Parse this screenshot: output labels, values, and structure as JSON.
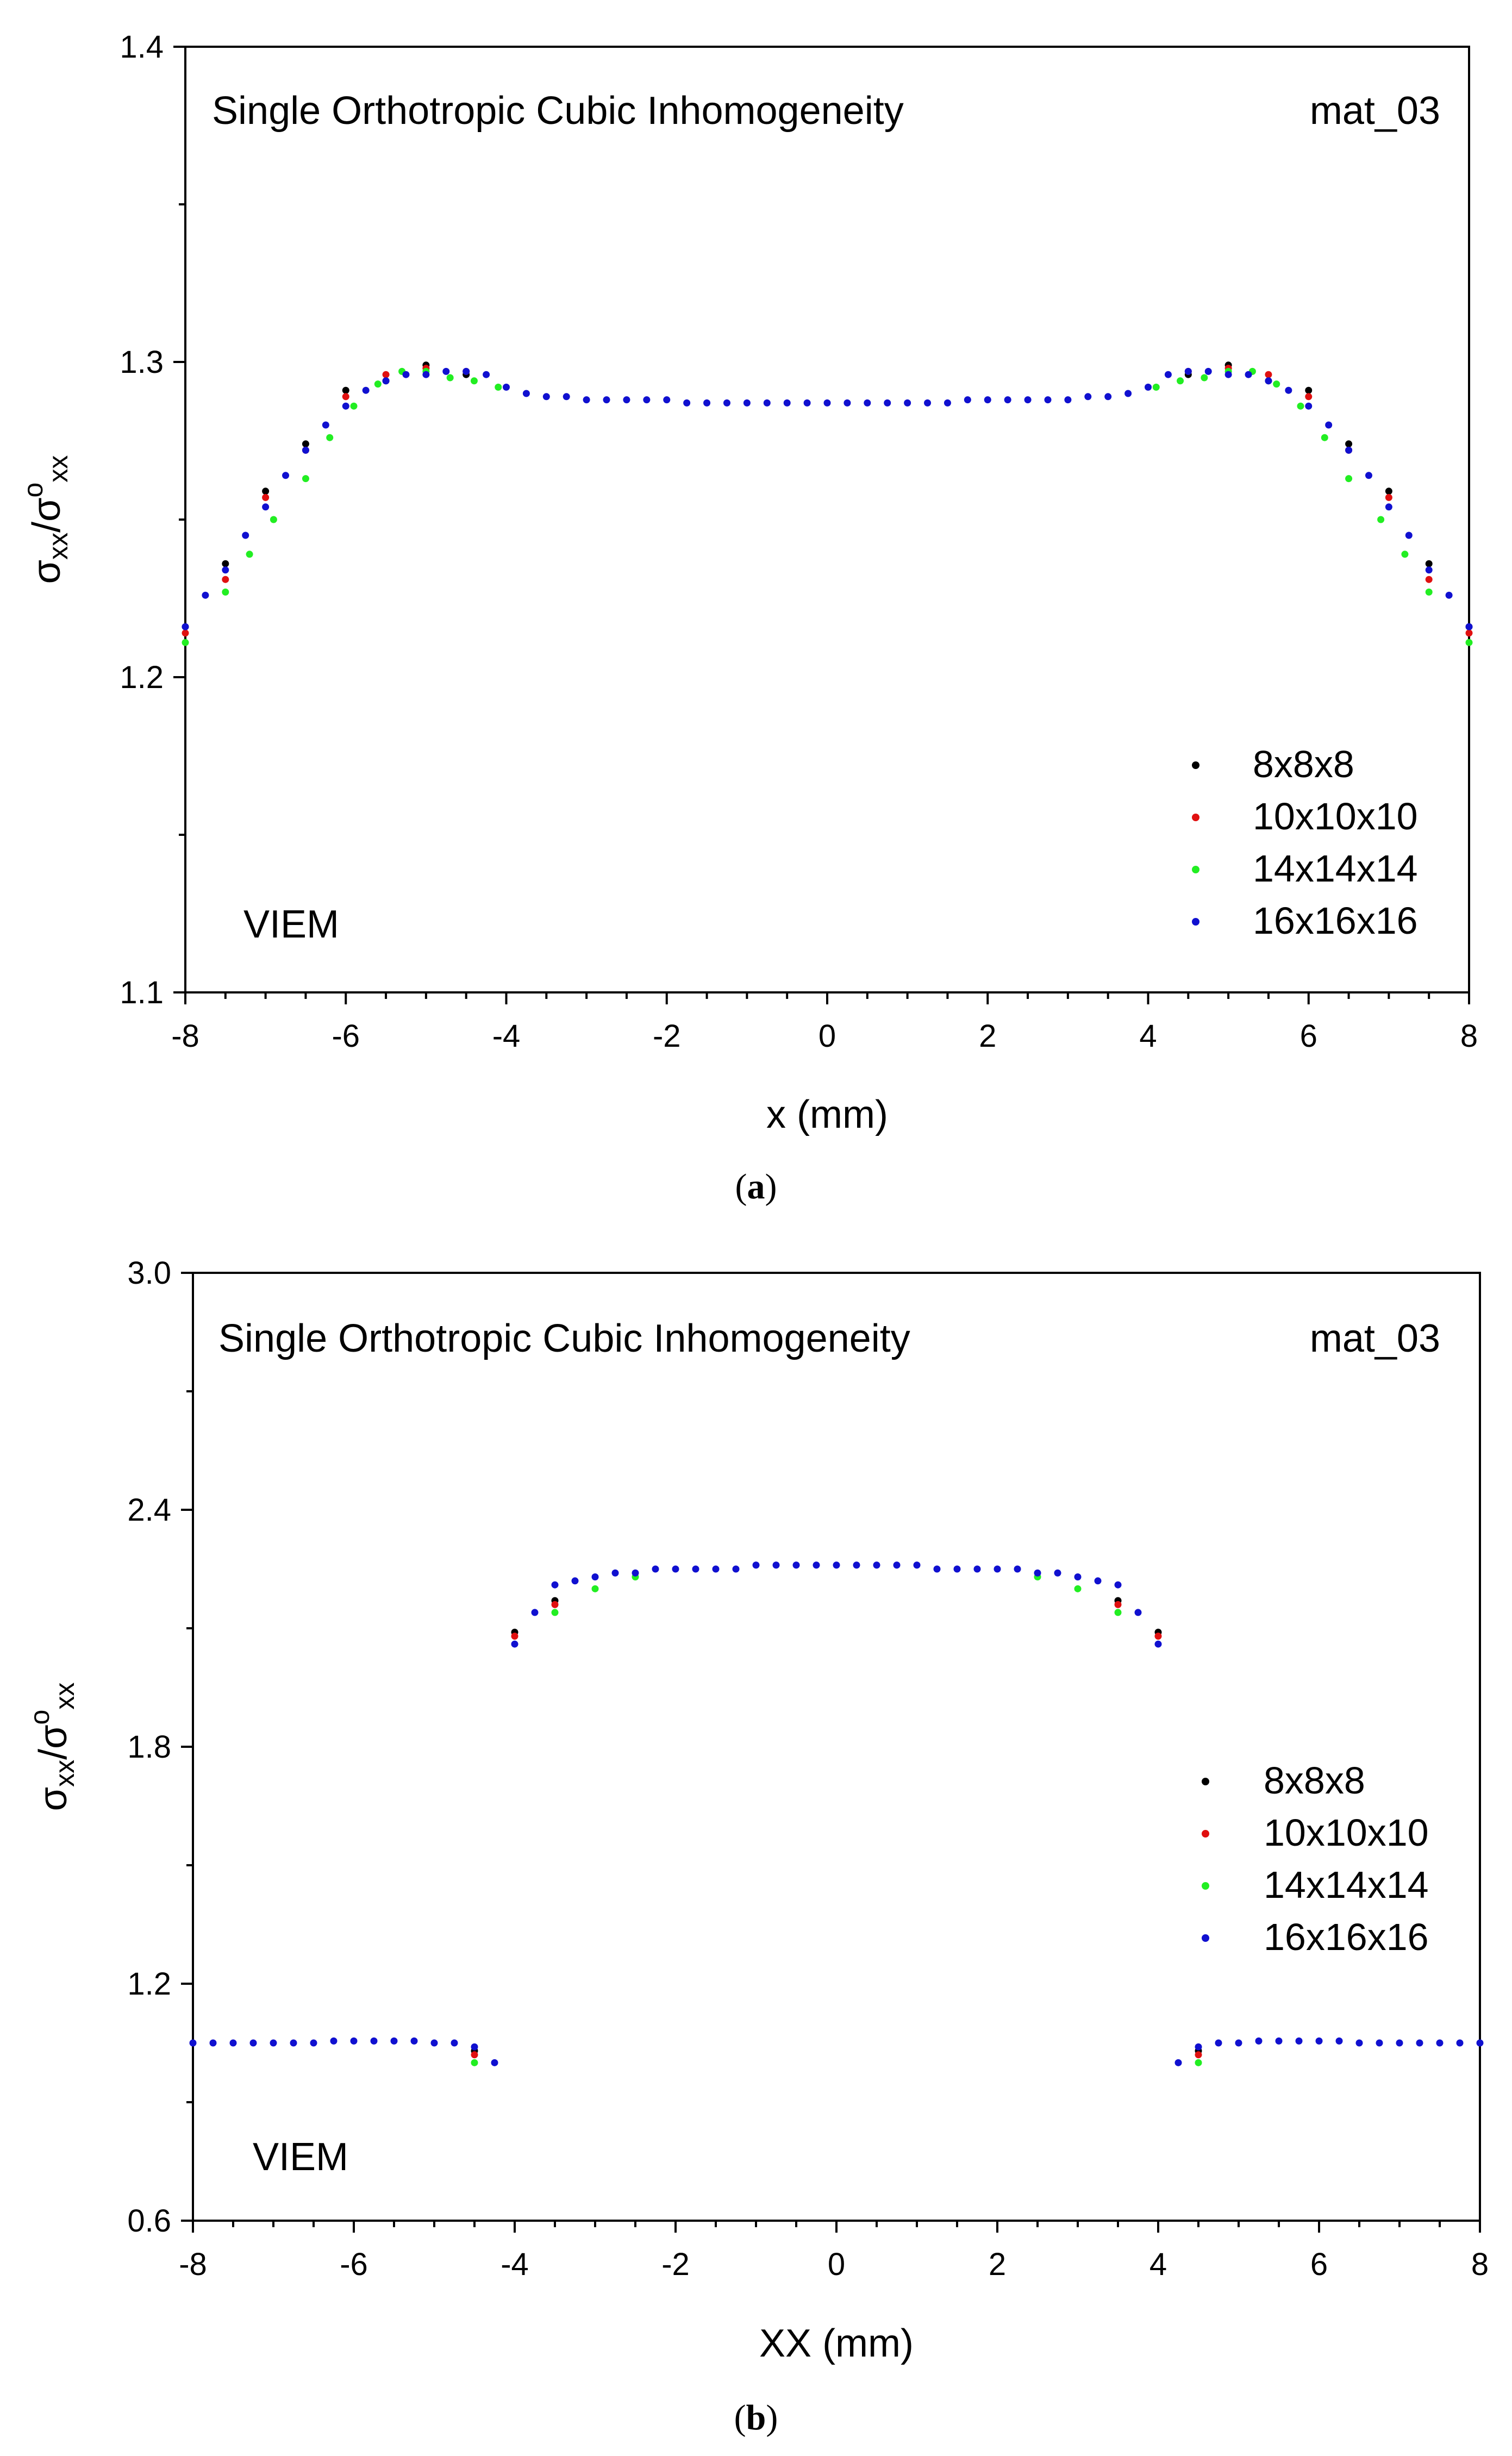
{
  "chart_data": [
    {
      "panel": "a",
      "type": "scatter",
      "title": "Single Orthotropic Cubic Inhomogeneity",
      "material_label": "mat_03",
      "method_label": "VIEM",
      "xlabel": "x (mm)",
      "ylabel_main": "σ",
      "ylabel_sub": "xx",
      "ylabel_sup": "o",
      "xlim": [
        -8,
        8
      ],
      "ylim": [
        1.1,
        1.4
      ],
      "x_ticks": [
        "-8",
        "-6",
        "-4",
        "-2",
        "0",
        "2",
        "4",
        "6",
        "8"
      ],
      "y_ticks": [
        "1.1",
        "1.2",
        "1.3",
        "1.4"
      ],
      "legend_position": "bottom-right",
      "caption_letter": "a",
      "series": [
        {
          "name": "8x8x8",
          "color": "#000000",
          "x": [
            -8,
            -7.5,
            -7,
            -6.5,
            -6,
            -5.5,
            -5,
            -4.5,
            4.5,
            5,
            5.5,
            6,
            6.5,
            7,
            7.5,
            8
          ],
          "y": [
            1.216,
            1.236,
            1.259,
            1.274,
            1.291,
            1.294,
            1.299,
            1.296,
            1.296,
            1.299,
            1.294,
            1.291,
            1.274,
            1.259,
            1.236,
            1.216
          ]
        },
        {
          "name": "10x10x10",
          "color": "#e01010",
          "x": [
            -8,
            -7.5,
            -7,
            -6.5,
            -6,
            -5.5,
            -5,
            -4.5,
            4.5,
            5,
            5.5,
            6,
            6.5,
            7,
            7.5,
            8
          ],
          "y": [
            1.214,
            1.231,
            1.257,
            1.272,
            1.289,
            1.296,
            1.298,
            1.297,
            1.297,
            1.298,
            1.296,
            1.289,
            1.272,
            1.257,
            1.231,
            1.214
          ]
        },
        {
          "name": "14x14x14",
          "color": "#22ee22",
          "x": [
            -8,
            -7.5,
            -7.2,
            -6.9,
            -6.5,
            -6.2,
            -5.9,
            -5.6,
            -5.3,
            -5,
            -4.7,
            -4.4,
            -4.1,
            4.1,
            4.4,
            4.7,
            5,
            5.3,
            5.6,
            5.9,
            6.2,
            6.5,
            6.9,
            7.2,
            7.5,
            8
          ],
          "y": [
            1.211,
            1.227,
            1.239,
            1.25,
            1.263,
            1.276,
            1.286,
            1.293,
            1.297,
            1.297,
            1.295,
            1.294,
            1.292,
            1.292,
            1.294,
            1.295,
            1.297,
            1.297,
            1.293,
            1.286,
            1.276,
            1.263,
            1.25,
            1.239,
            1.227,
            1.211
          ]
        },
        {
          "name": "16x16x16",
          "color": "#1010d0",
          "x": [
            -8,
            -7.75,
            -7.5,
            -7.25,
            -7,
            -6.75,
            -6.5,
            -6.25,
            -6,
            -5.75,
            -5.5,
            -5.25,
            -5,
            -4.75,
            -4.5,
            -4.25,
            -4,
            -3.75,
            -3.5,
            -3.25,
            -3,
            -2.75,
            -2.5,
            -2.25,
            -2,
            -1.75,
            -1.5,
            -1.25,
            -1,
            -0.75,
            -0.5,
            -0.25,
            0,
            0.25,
            0.5,
            0.75,
            1,
            1.25,
            1.5,
            1.75,
            2,
            2.25,
            2.5,
            2.75,
            3,
            3.25,
            3.5,
            3.75,
            4,
            4.25,
            4.5,
            4.75,
            5,
            5.25,
            5.5,
            5.75,
            6,
            6.25,
            6.5,
            6.75,
            7,
            7.25,
            7.5,
            7.75,
            8
          ],
          "y": [
            1.216,
            1.226,
            1.234,
            1.245,
            1.254,
            1.264,
            1.272,
            1.28,
            1.286,
            1.291,
            1.294,
            1.296,
            1.296,
            1.297,
            1.297,
            1.296,
            1.292,
            1.29,
            1.289,
            1.289,
            1.288,
            1.288,
            1.288,
            1.288,
            1.288,
            1.287,
            1.287,
            1.287,
            1.287,
            1.287,
            1.287,
            1.287,
            1.287,
            1.287,
            1.287,
            1.287,
            1.287,
            1.287,
            1.287,
            1.288,
            1.288,
            1.288,
            1.288,
            1.288,
            1.288,
            1.289,
            1.289,
            1.29,
            1.292,
            1.296,
            1.297,
            1.297,
            1.296,
            1.296,
            1.294,
            1.291,
            1.286,
            1.28,
            1.272,
            1.264,
            1.254,
            1.245,
            1.234,
            1.226,
            1.216
          ]
        }
      ]
    },
    {
      "panel": "b",
      "type": "scatter",
      "title": "Single Orthotropic Cubic Inhomogeneity",
      "material_label": "mat_03",
      "method_label": "VIEM",
      "xlabel": "XX (mm)",
      "ylabel_main": "σ",
      "ylabel_sub": "xx",
      "ylabel_sup": "o",
      "xlim": [
        -8,
        8
      ],
      "ylim": [
        0.6,
        3.0
      ],
      "x_ticks": [
        "-8",
        "-6",
        "-4",
        "-2",
        "0",
        "2",
        "4",
        "6",
        "8"
      ],
      "y_ticks": [
        "0.6",
        "1.2",
        "1.8",
        "2.4",
        "3.0"
      ],
      "legend_position": "right",
      "caption_letter": "b",
      "series": [
        {
          "name": "8x8x8",
          "color": "#000000",
          "x": [
            -4.5,
            -4,
            -3.5,
            3.5,
            4,
            4.5
          ],
          "y": [
            1.03,
            2.09,
            2.17,
            2.17,
            2.09,
            1.03
          ]
        },
        {
          "name": "10x10x10",
          "color": "#e01010",
          "x": [
            -4.5,
            -4,
            -3.5,
            3.5,
            4,
            4.5
          ],
          "y": [
            1.02,
            2.08,
            2.16,
            2.16,
            2.08,
            1.02
          ]
        },
        {
          "name": "14x14x14",
          "color": "#22ee22",
          "x": [
            -4.5,
            -3.5,
            -3,
            -2.5,
            2.5,
            3,
            3.5,
            4.5
          ],
          "y": [
            1.0,
            2.14,
            2.2,
            2.23,
            2.23,
            2.2,
            2.14,
            1.0
          ]
        },
        {
          "name": "16x16x16",
          "color": "#1010d0",
          "x": [
            -8,
            -7.75,
            -7.5,
            -7.25,
            -7,
            -6.75,
            -6.5,
            -6.25,
            -6,
            -5.75,
            -5.5,
            -5.25,
            -5,
            -4.75,
            -4.5,
            -4.25,
            -4,
            -3.75,
            -3.5,
            -3.25,
            -3,
            -2.75,
            -2.5,
            -2.25,
            -2,
            -1.75,
            -1.5,
            -1.25,
            -1,
            -0.75,
            -0.5,
            -0.25,
            0,
            0.25,
            0.5,
            0.75,
            1,
            1.25,
            1.5,
            1.75,
            2,
            2.25,
            2.5,
            2.75,
            3,
            3.25,
            3.5,
            3.75,
            4,
            4.25,
            4.5,
            4.75,
            5,
            5.25,
            5.5,
            5.75,
            6,
            6.25,
            6.5,
            6.75,
            7,
            7.25,
            7.5,
            7.75,
            8
          ],
          "y": [
            1.05,
            1.05,
            1.05,
            1.05,
            1.05,
            1.05,
            1.05,
            1.055,
            1.055,
            1.055,
            1.055,
            1.055,
            1.05,
            1.05,
            1.04,
            1.0,
            2.06,
            2.14,
            2.21,
            2.22,
            2.23,
            2.24,
            2.24,
            2.25,
            2.25,
            2.25,
            2.25,
            2.25,
            2.26,
            2.26,
            2.26,
            2.26,
            2.26,
            2.26,
            2.26,
            2.26,
            2.26,
            2.25,
            2.25,
            2.25,
            2.25,
            2.25,
            2.24,
            2.24,
            2.23,
            2.22,
            2.21,
            2.14,
            2.06,
            1.0,
            1.04,
            1.05,
            1.05,
            1.055,
            1.055,
            1.055,
            1.055,
            1.055,
            1.05,
            1.05,
            1.05,
            1.05,
            1.05,
            1.05,
            1.05
          ]
        }
      ]
    }
  ]
}
